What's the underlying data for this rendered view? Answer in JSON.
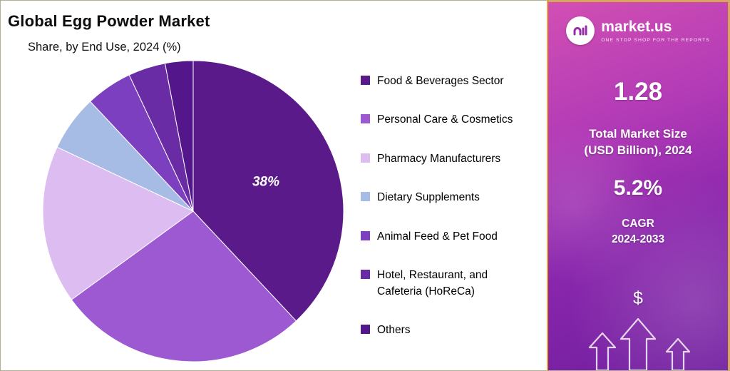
{
  "header": {
    "title": "Global Egg Powder Market",
    "subtitle": "Share, by End Use, 2024 (%)"
  },
  "chart_data": {
    "type": "pie",
    "title": "Global Egg Powder Market",
    "subtitle": "Share, by End Use, 2024 (%)",
    "unit": "%",
    "start_angle_deg": -90,
    "direction": "clockwise",
    "legend_position": "right",
    "slices": [
      {
        "label": "Food & Beverages Sector",
        "value": 38,
        "color": "#5a1a8a",
        "data_label": "38%"
      },
      {
        "label": "Personal Care & Cosmetics",
        "value": 27,
        "color": "#9c59d1"
      },
      {
        "label": "Pharmacy Manufacturers",
        "value": 17,
        "color": "#ddbcf2"
      },
      {
        "label": "Dietary Supplements",
        "value": 6,
        "color": "#a6bce5"
      },
      {
        "label": "Animal Feed & Pet Food",
        "value": 5,
        "color": "#7b3fbf"
      },
      {
        "label": "Hotel, Restaurant, and Cafeteria (HoReCa)",
        "value": 4,
        "color": "#6a2ca5"
      },
      {
        "label": "Others",
        "value": 3,
        "color": "#54168b"
      }
    ]
  },
  "side_panel": {
    "brand_name": "market.us",
    "brand_tagline": "ONE STOP SHOP FOR THE REPORTS",
    "market_size_value": "1.28",
    "market_size_label_line1": "Total Market Size",
    "market_size_label_line2": "(USD Billion), 2024",
    "cagr_value": "5.2%",
    "cagr_label_line1": "CAGR",
    "cagr_label_line2": "2024-2033",
    "dollar_symbol": "$",
    "accent_border_color": "#ef9c3a",
    "panel_gradient_colors": [
      "#d24fb4",
      "#9a2fb5",
      "#6f1d9e"
    ]
  }
}
